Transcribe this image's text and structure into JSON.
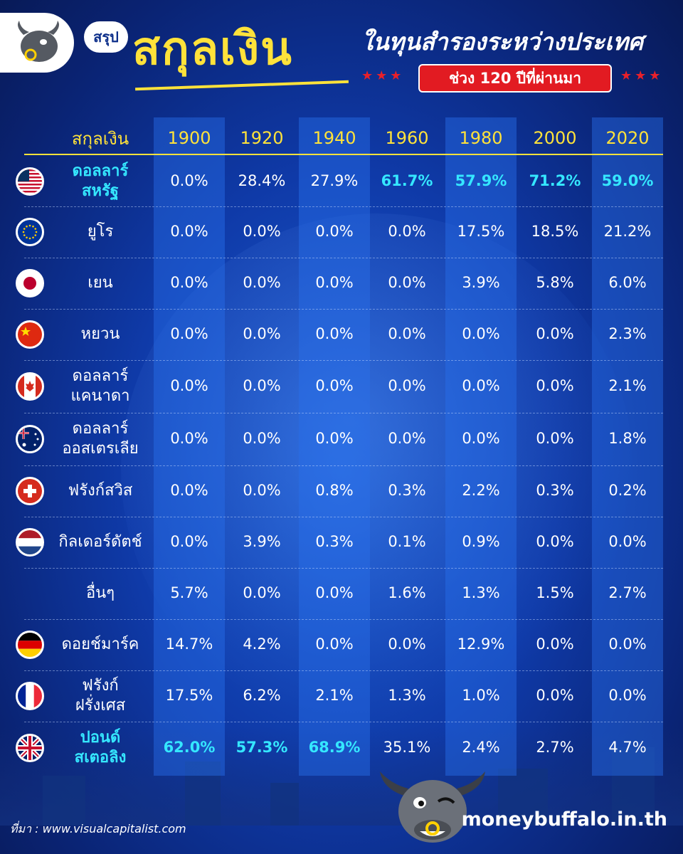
{
  "header": {
    "badge": "สรุป",
    "title": "สกุลเงิน",
    "subtitle": "ในทุนสำรองระหว่างประเทศ",
    "period": "ช่วง 120 ปีที่ผ่านมา",
    "stars": "★★★"
  },
  "table": {
    "first_header": "สกุลเงิน",
    "years": [
      "1900",
      "1920",
      "1940",
      "1960",
      "1980",
      "2000",
      "2020"
    ],
    "rows": [
      {
        "name": "ดอลลาร์\nสหรัฐ",
        "flag": "us-flag-icon",
        "highlight": true,
        "values": [
          "0.0%",
          "28.4%",
          "27.9%",
          "61.7%",
          "57.9%",
          "71.2%",
          "59.0%"
        ],
        "hl": [
          false,
          false,
          false,
          true,
          true,
          true,
          true
        ]
      },
      {
        "name": "ยูโร",
        "flag": "eu-flag-icon",
        "highlight": false,
        "values": [
          "0.0%",
          "0.0%",
          "0.0%",
          "0.0%",
          "17.5%",
          "18.5%",
          "21.2%"
        ],
        "hl": [
          false,
          false,
          false,
          false,
          false,
          false,
          false
        ]
      },
      {
        "name": "เยน",
        "flag": "japan-flag-icon",
        "highlight": false,
        "values": [
          "0.0%",
          "0.0%",
          "0.0%",
          "0.0%",
          "3.9%",
          "5.8%",
          "6.0%"
        ],
        "hl": [
          false,
          false,
          false,
          false,
          false,
          false,
          false
        ]
      },
      {
        "name": "หยวน",
        "flag": "china-flag-icon",
        "highlight": false,
        "values": [
          "0.0%",
          "0.0%",
          "0.0%",
          "0.0%",
          "0.0%",
          "0.0%",
          "2.3%"
        ],
        "hl": [
          false,
          false,
          false,
          false,
          false,
          false,
          false
        ]
      },
      {
        "name": "ดอลลาร์\nแคนาดา",
        "flag": "canada-flag-icon",
        "highlight": false,
        "values": [
          "0.0%",
          "0.0%",
          "0.0%",
          "0.0%",
          "0.0%",
          "0.0%",
          "2.1%"
        ],
        "hl": [
          false,
          false,
          false,
          false,
          false,
          false,
          false
        ]
      },
      {
        "name": "ดอลลาร์\nออสเตรเลีย",
        "flag": "australia-flag-icon",
        "highlight": false,
        "values": [
          "0.0%",
          "0.0%",
          "0.0%",
          "0.0%",
          "0.0%",
          "0.0%",
          "1.8%"
        ],
        "hl": [
          false,
          false,
          false,
          false,
          false,
          false,
          false
        ]
      },
      {
        "name": "ฟรังก์สวิส",
        "flag": "swiss-flag-icon",
        "highlight": false,
        "values": [
          "0.0%",
          "0.0%",
          "0.8%",
          "0.3%",
          "2.2%",
          "0.3%",
          "0.2%"
        ],
        "hl": [
          false,
          false,
          false,
          false,
          false,
          false,
          false
        ]
      },
      {
        "name": "กิลเดอร์ดัตช์",
        "flag": "netherlands-flag-icon",
        "highlight": false,
        "values": [
          "0.0%",
          "3.9%",
          "0.3%",
          "0.1%",
          "0.9%",
          "0.0%",
          "0.0%"
        ],
        "hl": [
          false,
          false,
          false,
          false,
          false,
          false,
          false
        ]
      },
      {
        "name": "อื่นๆ",
        "flag": "",
        "highlight": false,
        "values": [
          "5.7%",
          "0.0%",
          "0.0%",
          "1.6%",
          "1.3%",
          "1.5%",
          "2.7%"
        ],
        "hl": [
          false,
          false,
          false,
          false,
          false,
          false,
          false
        ]
      },
      {
        "name": "ดอยช์มาร์ค",
        "flag": "germany-flag-icon",
        "highlight": false,
        "values": [
          "14.7%",
          "4.2%",
          "0.0%",
          "0.0%",
          "12.9%",
          "0.0%",
          "0.0%"
        ],
        "hl": [
          false,
          false,
          false,
          false,
          false,
          false,
          false
        ]
      },
      {
        "name": "ฟรังก์\nฝรั่งเศส",
        "flag": "france-flag-icon",
        "highlight": false,
        "values": [
          "17.5%",
          "6.2%",
          "2.1%",
          "1.3%",
          "1.0%",
          "0.0%",
          "0.0%"
        ],
        "hl": [
          false,
          false,
          false,
          false,
          false,
          false,
          false
        ]
      },
      {
        "name": "ปอนด์\nสเตอลิง",
        "flag": "uk-flag-icon",
        "highlight": true,
        "values": [
          "62.0%",
          "57.3%",
          "68.9%",
          "35.1%",
          "2.4%",
          "2.7%",
          "4.7%"
        ],
        "hl": [
          true,
          true,
          true,
          false,
          false,
          false,
          false
        ]
      }
    ]
  },
  "footer": {
    "source": "ที่มา : www.visualcapitalist.com",
    "site": "moneybuffalo.in.th"
  },
  "colors": {
    "accent_yellow": "#ffe23a",
    "highlight_cyan": "#35e7ff",
    "badge_red": "#e21b22",
    "background": "#0f3aa8"
  }
}
